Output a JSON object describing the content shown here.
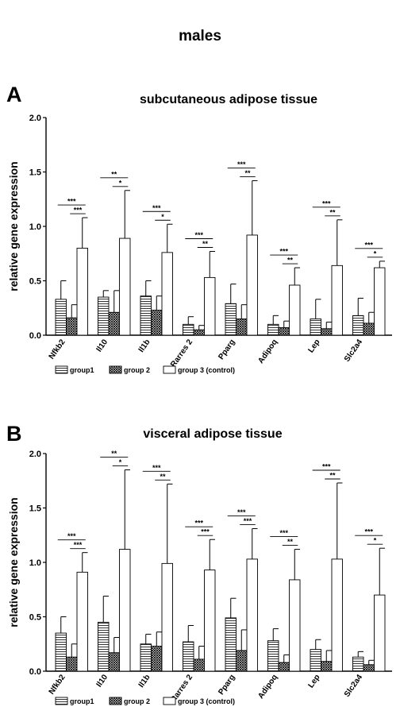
{
  "figure_title": "males",
  "chart_data": [
    {
      "type": "bar",
      "panel_label": "A",
      "title": "subcutaneous adipose tissue",
      "ylabel": "relative gene expression",
      "xlabel": "",
      "ylim": [
        0,
        2.0
      ],
      "yticks": [
        "0.0",
        "0.5",
        "1.0",
        "1.5",
        "2.0"
      ],
      "grid": false,
      "legend_position": "bottom",
      "categories": [
        "Nfkb2",
        "Il10",
        "Il1b",
        "Rarres 2",
        "Pparg",
        "Adipoq",
        "Lep",
        "Slc2a4"
      ],
      "series": [
        {
          "name": "group1",
          "pattern": "horizontal-lines",
          "values": [
            0.33,
            0.35,
            0.36,
            0.1,
            0.29,
            0.1,
            0.15,
            0.18
          ],
          "errors": [
            0.17,
            0.06,
            0.14,
            0.07,
            0.18,
            0.08,
            0.18,
            0.16
          ]
        },
        {
          "name": "group 2",
          "pattern": "crosshatch",
          "values": [
            0.16,
            0.21,
            0.23,
            0.05,
            0.15,
            0.07,
            0.06,
            0.11
          ],
          "errors": [
            0.12,
            0.2,
            0.13,
            0.04,
            0.13,
            0.06,
            0.06,
            0.1
          ]
        },
        {
          "name": "group 3 (control)",
          "pattern": "white",
          "values": [
            0.8,
            0.89,
            0.76,
            0.53,
            0.92,
            0.46,
            0.64,
            0.62
          ],
          "errors": [
            0.28,
            0.44,
            0.26,
            0.24,
            0.5,
            0.16,
            0.42,
            0.06
          ]
        }
      ],
      "significance": [
        {
          "category": "Nfkb2",
          "g1_vs_g3": "***",
          "g2_vs_g3": "***"
        },
        {
          "category": "Il10",
          "g1_vs_g3": "**",
          "g2_vs_g3": "*"
        },
        {
          "category": "Il1b",
          "g1_vs_g3": "***",
          "g2_vs_g3": "*"
        },
        {
          "category": "Rarres 2",
          "g1_vs_g3": "***",
          "g2_vs_g3": "**"
        },
        {
          "category": "Pparg",
          "g1_vs_g3": "***",
          "g2_vs_g3": "**"
        },
        {
          "category": "Adipoq",
          "g1_vs_g3": "***",
          "g2_vs_g3": "**"
        },
        {
          "category": "Lep",
          "g1_vs_g3": "***",
          "g2_vs_g3": "**"
        },
        {
          "category": "Slc2a4",
          "g1_vs_g3": "***",
          "g2_vs_g3": "*"
        }
      ]
    },
    {
      "type": "bar",
      "panel_label": "B",
      "title": "visceral adipose tissue",
      "ylabel": "relative gene expression",
      "xlabel": "",
      "ylim": [
        0,
        2.0
      ],
      "yticks": [
        "0.0",
        "0.5",
        "1.0",
        "1.5",
        "2.0"
      ],
      "grid": false,
      "legend_position": "bottom",
      "categories": [
        "Nfkb2",
        "Il10",
        "Il1b",
        "Rarres 2",
        "Pparg",
        "Adipoq",
        "Lep",
        "Slc2a4"
      ],
      "series": [
        {
          "name": "group1",
          "pattern": "horizontal-lines",
          "values": [
            0.35,
            0.45,
            0.25,
            0.27,
            0.49,
            0.28,
            0.2,
            0.13
          ],
          "errors": [
            0.15,
            0.24,
            0.09,
            0.15,
            0.18,
            0.11,
            0.09,
            0.05
          ]
        },
        {
          "name": "group 2",
          "pattern": "crosshatch",
          "values": [
            0.13,
            0.17,
            0.23,
            0.11,
            0.19,
            0.08,
            0.09,
            0.06
          ],
          "errors": [
            0.12,
            0.14,
            0.13,
            0.12,
            0.19,
            0.07,
            0.1,
            0.04
          ]
        },
        {
          "name": "group 3 (control)",
          "pattern": "white",
          "values": [
            0.91,
            1.12,
            0.99,
            0.93,
            1.03,
            0.84,
            1.03,
            0.7
          ],
          "errors": [
            0.18,
            0.73,
            0.73,
            0.28,
            0.28,
            0.28,
            0.7,
            0.43
          ]
        }
      ],
      "significance": [
        {
          "category": "Nfkb2",
          "g1_vs_g3": "***",
          "g2_vs_g3": "***"
        },
        {
          "category": "Il10",
          "g1_vs_g3": "**",
          "g2_vs_g3": "*"
        },
        {
          "category": "Il1b",
          "g1_vs_g3": "***",
          "g2_vs_g3": "**"
        },
        {
          "category": "Rarres 2",
          "g1_vs_g3": "***",
          "g2_vs_g3": "***"
        },
        {
          "category": "Pparg",
          "g1_vs_g3": "***",
          "g2_vs_g3": "***"
        },
        {
          "category": "Adipoq",
          "g1_vs_g3": "***",
          "g2_vs_g3": "**"
        },
        {
          "category": "Lep",
          "g1_vs_g3": "***",
          "g2_vs_g3": "**"
        },
        {
          "category": "Slc2a4",
          "g1_vs_g3": "***",
          "g2_vs_g3": "*"
        }
      ]
    }
  ]
}
